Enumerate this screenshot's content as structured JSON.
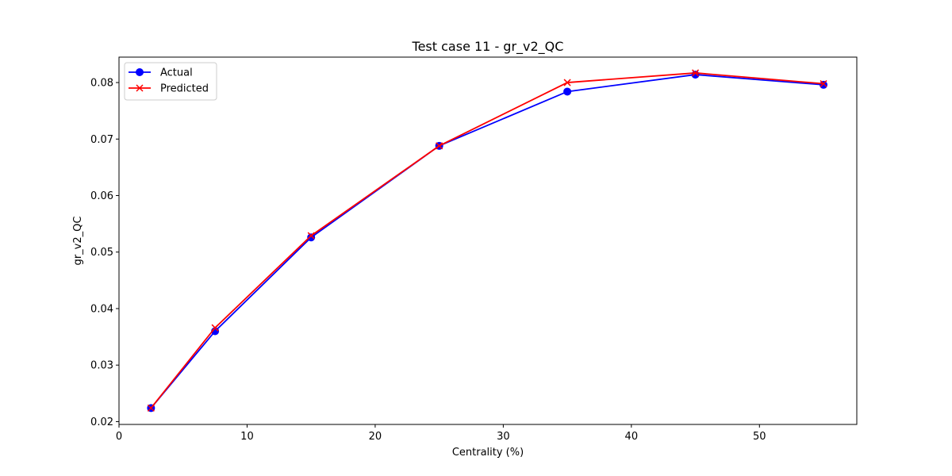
{
  "chart_data": {
    "type": "line",
    "title": "Test case 11 - gr_v2_QC",
    "xlabel": "Centrality (%)",
    "ylabel": "gr_v2_QC",
    "xlim": [
      0,
      57.6
    ],
    "ylim": [
      0.0195,
      0.0845
    ],
    "xticks": [
      0,
      10,
      20,
      30,
      40,
      50
    ],
    "xtick_labels": [
      "0",
      "10",
      "20",
      "30",
      "40",
      "50"
    ],
    "yticks": [
      0.02,
      0.03,
      0.04,
      0.05,
      0.06,
      0.07,
      0.08
    ],
    "ytick_labels": [
      "0.02",
      "0.03",
      "0.04",
      "0.05",
      "0.06",
      "0.07",
      "0.08"
    ],
    "grid": false,
    "legend_position": "top-left",
    "x": [
      2.5,
      7.5,
      15,
      25,
      35,
      45,
      55
    ],
    "series": [
      {
        "name": "Actual",
        "color": "#0000ff",
        "marker": "circle",
        "values": [
          0.0224,
          0.036,
          0.0526,
          0.0688,
          0.0784,
          0.0814,
          0.0796
        ]
      },
      {
        "name": "Predicted",
        "color": "#ff0000",
        "marker": "x",
        "values": [
          0.0224,
          0.0366,
          0.0529,
          0.0688,
          0.08,
          0.0817,
          0.0798
        ]
      }
    ]
  }
}
